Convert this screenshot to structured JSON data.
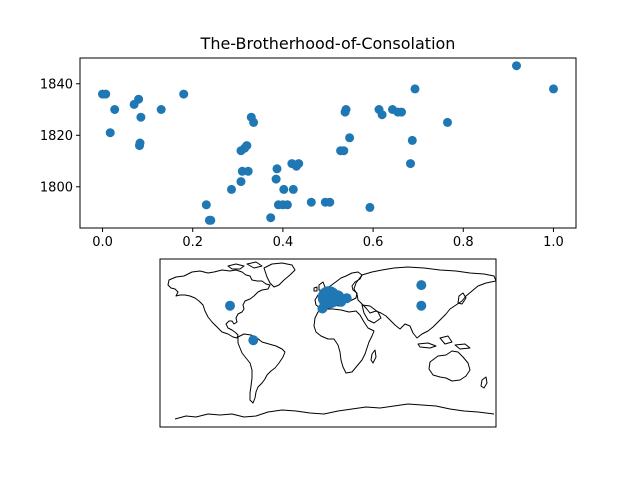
{
  "colors": {
    "marker": "#1f77b4",
    "axes": "#000000",
    "land_outline": "#000000",
    "background": "#ffffff"
  },
  "chart_data": [
    {
      "type": "scatter",
      "title": "The-Brotherhood-of-Consolation",
      "xlabel": "",
      "ylabel": "",
      "xlim": [
        -0.05,
        1.05
      ],
      "ylim": [
        1784,
        1850
      ],
      "xticks": [
        0.0,
        0.2,
        0.4,
        0.6,
        0.8,
        1.0
      ],
      "xtick_labels": [
        "0.0",
        "0.2",
        "0.4",
        "0.6",
        "0.8",
        "1.0"
      ],
      "yticks": [
        1800,
        1820,
        1840
      ],
      "ytick_labels": [
        "1800",
        "1820",
        "1840"
      ],
      "grid": false,
      "points": [
        {
          "x": 0.0,
          "y": 1836
        },
        {
          "x": 0.007,
          "y": 1836
        },
        {
          "x": 0.017,
          "y": 1821
        },
        {
          "x": 0.027,
          "y": 1830
        },
        {
          "x": 0.07,
          "y": 1832
        },
        {
          "x": 0.08,
          "y": 1834
        },
        {
          "x": 0.082,
          "y": 1816
        },
        {
          "x": 0.083,
          "y": 1817
        },
        {
          "x": 0.085,
          "y": 1827
        },
        {
          "x": 0.13,
          "y": 1830
        },
        {
          "x": 0.18,
          "y": 1836
        },
        {
          "x": 0.23,
          "y": 1793
        },
        {
          "x": 0.237,
          "y": 1787
        },
        {
          "x": 0.24,
          "y": 1787
        },
        {
          "x": 0.286,
          "y": 1799
        },
        {
          "x": 0.307,
          "y": 1802
        },
        {
          "x": 0.307,
          "y": 1814
        },
        {
          "x": 0.31,
          "y": 1806
        },
        {
          "x": 0.315,
          "y": 1815
        },
        {
          "x": 0.32,
          "y": 1816
        },
        {
          "x": 0.323,
          "y": 1806
        },
        {
          "x": 0.33,
          "y": 1827
        },
        {
          "x": 0.335,
          "y": 1825
        },
        {
          "x": 0.373,
          "y": 1788
        },
        {
          "x": 0.385,
          "y": 1803
        },
        {
          "x": 0.387,
          "y": 1807
        },
        {
          "x": 0.39,
          "y": 1793
        },
        {
          "x": 0.4,
          "y": 1793
        },
        {
          "x": 0.402,
          "y": 1799
        },
        {
          "x": 0.41,
          "y": 1793
        },
        {
          "x": 0.42,
          "y": 1809
        },
        {
          "x": 0.423,
          "y": 1799
        },
        {
          "x": 0.43,
          "y": 1808
        },
        {
          "x": 0.435,
          "y": 1809
        },
        {
          "x": 0.463,
          "y": 1794
        },
        {
          "x": 0.494,
          "y": 1794
        },
        {
          "x": 0.504,
          "y": 1794
        },
        {
          "x": 0.528,
          "y": 1814
        },
        {
          "x": 0.535,
          "y": 1814
        },
        {
          "x": 0.538,
          "y": 1829
        },
        {
          "x": 0.54,
          "y": 1830
        },
        {
          "x": 0.548,
          "y": 1819
        },
        {
          "x": 0.593,
          "y": 1792
        },
        {
          "x": 0.613,
          "y": 1830
        },
        {
          "x": 0.62,
          "y": 1828
        },
        {
          "x": 0.643,
          "y": 1830
        },
        {
          "x": 0.655,
          "y": 1829
        },
        {
          "x": 0.663,
          "y": 1829
        },
        {
          "x": 0.683,
          "y": 1809
        },
        {
          "x": 0.687,
          "y": 1818
        },
        {
          "x": 0.693,
          "y": 1838
        },
        {
          "x": 0.765,
          "y": 1825
        },
        {
          "x": 0.918,
          "y": 1847
        },
        {
          "x": 1.0,
          "y": 1838
        }
      ]
    },
    {
      "type": "map",
      "title": "",
      "projection": "plate-carree",
      "markers": [
        {
          "lon": -105,
          "lat": 40,
          "size": 1
        },
        {
          "lon": -80,
          "lat": 3,
          "size": 1
        },
        {
          "lon": -6,
          "lat": 37,
          "size": 1
        },
        {
          "lon": -2,
          "lat": 47,
          "size": 2
        },
        {
          "lon": 1,
          "lat": 49,
          "size": 5
        },
        {
          "lon": 5,
          "lat": 46,
          "size": 2
        },
        {
          "lon": 10,
          "lat": 49,
          "size": 2
        },
        {
          "lon": 14,
          "lat": 44,
          "size": 1
        },
        {
          "lon": 20,
          "lat": 48,
          "size": 1
        },
        {
          "lon": 100,
          "lat": 62,
          "size": 1
        },
        {
          "lon": 100,
          "lat": 40,
          "size": 1
        }
      ]
    }
  ]
}
